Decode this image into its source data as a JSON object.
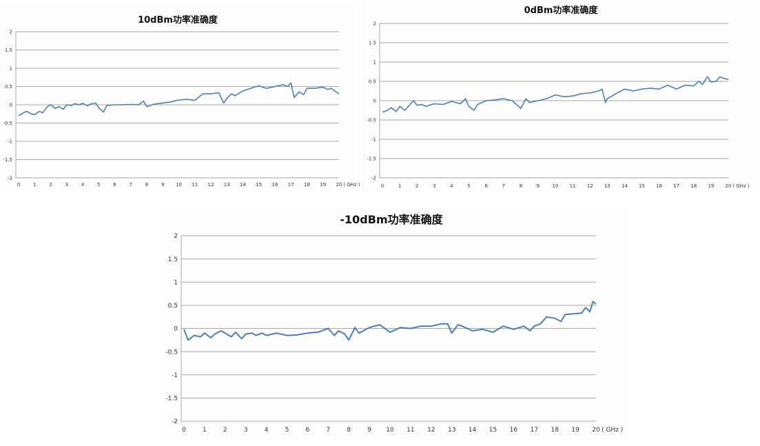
{
  "chart_data": [
    {
      "type": "line",
      "title": "10dBm功率准确度",
      "xunit": "( GHz )",
      "xlim": [
        0,
        20
      ],
      "ylim": [
        -2,
        2
      ],
      "xticks": [
        "0",
        "1",
        "2",
        "3",
        "4",
        "5",
        "6",
        "7",
        "8",
        "9",
        "10",
        "11",
        "12",
        "13",
        "14",
        "15",
        "16",
        "17",
        "18",
        "19",
        "20"
      ],
      "yticks": [
        "2",
        "1.5",
        "1",
        "0.5",
        "0",
        "-0.5",
        "-1",
        "-1.5",
        "-2"
      ],
      "grid": true,
      "line_color": "#4a7ebb",
      "x": [
        0,
        0.3,
        0.5,
        0.8,
        1,
        1.3,
        1.5,
        1.8,
        2,
        2.3,
        2.5,
        2.8,
        3,
        3.3,
        3.5,
        3.8,
        4,
        4.3,
        4.5,
        4.8,
        5,
        5.3,
        5.5,
        5.8,
        6,
        6.5,
        7,
        7.5,
        7.8,
        8,
        8.5,
        9,
        9.5,
        10,
        10.5,
        11,
        11.5,
        12,
        12.5,
        12.8,
        13,
        13.3,
        13.5,
        14,
        14.5,
        15,
        15.3,
        15.5,
        16,
        16.5,
        16.8,
        17,
        17.2,
        17.5,
        17.8,
        18,
        18.5,
        19,
        19.3,
        19.5,
        20
      ],
      "values": [
        -0.3,
        -0.22,
        -0.18,
        -0.25,
        -0.27,
        -0.18,
        -0.22,
        -0.05,
        0,
        -0.1,
        -0.05,
        -0.12,
        0,
        -0.02,
        0.03,
        0,
        0.04,
        -0.03,
        0.02,
        0.05,
        -0.08,
        -0.2,
        -0.02,
        -0.01,
        0,
        0,
        0.01,
        0,
        0.1,
        -0.05,
        0.02,
        0.05,
        0.08,
        0.13,
        0.15,
        0.12,
        0.3,
        0.3,
        0.33,
        0.05,
        0.18,
        0.3,
        0.25,
        0.38,
        0.45,
        0.52,
        0.47,
        0.45,
        0.5,
        0.55,
        0.5,
        0.6,
        0.2,
        0.35,
        0.28,
        0.45,
        0.45,
        0.48,
        0.42,
        0.45,
        0.3
      ]
    },
    {
      "type": "line",
      "title": "0dBm功率准确度",
      "xunit": "( GHz )",
      "xlim": [
        0,
        20
      ],
      "ylim": [
        -2,
        2
      ],
      "xticks": [
        "0",
        "1",
        "2",
        "3",
        "4",
        "5",
        "6",
        "7",
        "8",
        "9",
        "10",
        "11",
        "12",
        "13",
        "14",
        "15",
        "16",
        "17",
        "18",
        "19",
        "20"
      ],
      "yticks": [
        "2",
        "1.5",
        "1",
        "0.5",
        "0",
        "-0.5",
        "-1",
        "-1.5",
        "-2"
      ],
      "grid": true,
      "line_color": "#4a7ebb",
      "x": [
        0,
        0.3,
        0.5,
        0.8,
        1,
        1.3,
        1.5,
        1.8,
        2,
        2.3,
        2.5,
        3,
        3.5,
        4,
        4.5,
        4.8,
        5,
        5.3,
        5.5,
        6,
        6.5,
        7,
        7.5,
        8,
        8.3,
        8.5,
        9,
        9.5,
        10,
        10.5,
        11,
        11.5,
        12,
        12.5,
        12.7,
        12.9,
        13,
        13.5,
        14,
        14.5,
        15,
        15.5,
        16,
        16.5,
        17,
        17.5,
        18,
        18.3,
        18.5,
        18.8,
        19,
        19.3,
        19.5,
        19.7,
        20
      ],
      "values": [
        -0.3,
        -0.25,
        -0.18,
        -0.28,
        -0.15,
        -0.25,
        -0.15,
        0,
        -0.12,
        -0.1,
        -0.15,
        -0.08,
        -0.1,
        -0.02,
        -0.08,
        0.05,
        -0.15,
        -0.25,
        -0.1,
        0,
        0.02,
        0.05,
        0,
        -0.2,
        0.05,
        -0.05,
        0,
        0.05,
        0.15,
        0.1,
        0.12,
        0.18,
        0.2,
        0.25,
        0.3,
        -0.05,
        0.05,
        0.18,
        0.3,
        0.25,
        0.3,
        0.32,
        0.3,
        0.4,
        0.3,
        0.4,
        0.38,
        0.5,
        0.42,
        0.62,
        0.48,
        0.5,
        0.62,
        0.58,
        0.55
      ]
    },
    {
      "type": "line",
      "title": "-10dBm功率准确度",
      "xunit": "( GHz )",
      "xlim": [
        0,
        20
      ],
      "ylim": [
        -2,
        2
      ],
      "xticks": [
        "0",
        "1",
        "2",
        "3",
        "4",
        "5",
        "6",
        "7",
        "8",
        "9",
        "10",
        "11",
        "12",
        "13",
        "14",
        "15",
        "16",
        "17",
        "18",
        "19",
        "20"
      ],
      "yticks": [
        "2",
        "1.5",
        "1",
        "0.5",
        "0",
        "-0.5",
        "-1",
        "-1.5",
        "-2"
      ],
      "grid": true,
      "line_color": "#4a7ebb",
      "x": [
        0,
        0.2,
        0.5,
        0.8,
        1,
        1.3,
        1.5,
        1.8,
        2,
        2.3,
        2.5,
        2.8,
        3,
        3.3,
        3.5,
        3.8,
        4,
        4.5,
        5,
        5.5,
        6,
        6.5,
        7,
        7.3,
        7.5,
        7.8,
        8,
        8.3,
        8.5,
        9,
        9.5,
        10,
        10.5,
        11,
        11.5,
        12,
        12.5,
        12.8,
        13,
        13.3,
        13.5,
        14,
        14.5,
        15,
        15.5,
        16,
        16.5,
        16.8,
        17,
        17.3,
        17.6,
        18,
        18.3,
        18.5,
        19,
        19.3,
        19.5,
        19.7,
        19.85,
        20
      ],
      "values": [
        -0.02,
        -0.25,
        -0.15,
        -0.18,
        -0.1,
        -0.2,
        -0.12,
        -0.05,
        -0.1,
        -0.18,
        -0.08,
        -0.22,
        -0.12,
        -0.1,
        -0.15,
        -0.1,
        -0.15,
        -0.1,
        -0.15,
        -0.14,
        -0.1,
        -0.08,
        0,
        -0.15,
        -0.05,
        -0.12,
        -0.25,
        0.02,
        -0.1,
        0.02,
        0.08,
        -0.08,
        0.02,
        0,
        0.05,
        0.05,
        0.1,
        0.1,
        -0.1,
        0.08,
        0.05,
        -0.05,
        -0.02,
        -0.08,
        0.05,
        -0.02,
        0.05,
        -0.05,
        0.05,
        0.1,
        0.25,
        0.22,
        0.15,
        0.3,
        0.32,
        0.33,
        0.45,
        0.36,
        0.58,
        0.53
      ]
    }
  ]
}
